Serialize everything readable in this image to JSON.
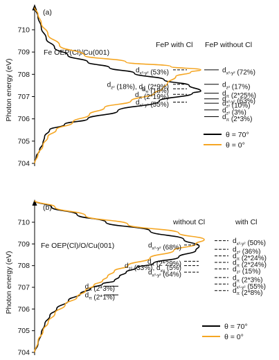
{
  "chart_data": [
    {
      "type": "line",
      "panel_label": "(a)",
      "sample": "Fe OEP(Cl)/Cu(001)",
      "ylabel": "Photon energy (eV)",
      "ylim": [
        704,
        711
      ],
      "yticks": [
        704,
        705,
        706,
        707,
        708,
        709,
        710
      ],
      "legend": [
        {
          "name": "θ = 70°",
          "color": "#000000"
        },
        {
          "name": "θ = 0°",
          "color": "#f5a623"
        }
      ],
      "series": [
        {
          "name": "θ = 70°",
          "color": "#000000",
          "points": [
            [
              0.0,
              704.0
            ],
            [
              0.01,
              704.3
            ],
            [
              0.03,
              704.6
            ],
            [
              0.05,
              704.9
            ],
            [
              0.06,
              705.2
            ],
            [
              0.09,
              705.5
            ],
            [
              0.18,
              705.75
            ],
            [
              0.32,
              706.0
            ],
            [
              0.5,
              706.35
            ],
            [
              0.75,
              706.8
            ],
            [
              0.95,
              707.15
            ],
            [
              1.0,
              707.25
            ],
            [
              0.93,
              707.5
            ],
            [
              0.78,
              707.75
            ],
            [
              0.6,
              708.05
            ],
            [
              0.45,
              708.3
            ],
            [
              0.32,
              708.55
            ],
            [
              0.2,
              708.85
            ],
            [
              0.12,
              709.2
            ],
            [
              0.07,
              709.6
            ],
            [
              0.04,
              710.1
            ],
            [
              0.02,
              710.6
            ],
            [
              0.0,
              711.0
            ]
          ]
        },
        {
          "name": "θ = 0°",
          "color": "#f5a623",
          "points": [
            [
              0.0,
              704.0
            ],
            [
              0.02,
              704.4
            ],
            [
              0.05,
              704.8
            ],
            [
              0.08,
              705.2
            ],
            [
              0.13,
              705.5
            ],
            [
              0.23,
              705.85
            ],
            [
              0.33,
              706.2
            ],
            [
              0.42,
              706.5
            ],
            [
              0.58,
              706.8
            ],
            [
              0.72,
              707.15
            ],
            [
              0.77,
              707.35
            ],
            [
              0.8,
              707.6
            ],
            [
              0.85,
              707.9
            ],
            [
              0.94,
              708.1
            ],
            [
              1.0,
              708.2
            ],
            [
              0.82,
              708.35
            ],
            [
              0.55,
              708.55
            ],
            [
              0.3,
              708.85
            ],
            [
              0.15,
              709.3
            ],
            [
              0.08,
              709.8
            ],
            [
              0.04,
              710.3
            ],
            [
              0.02,
              710.7
            ],
            [
              0.0,
              711.0
            ]
          ]
        }
      ],
      "group_labels": {
        "left": "FeP with Cl",
        "right": "FeP without Cl"
      },
      "annotations_left": [
        {
          "orb": "d",
          "sub": "x²-y²",
          "text": " (53%)",
          "energy": 708.2
        },
        {
          "orb": "d",
          "sub": "z²",
          "text": " (18%), d",
          "sub2": "π",
          "text2": " (2*9%)",
          "energy": 707.55
        },
        {
          "orb": "d",
          "sub": "π",
          "text": " (18%)",
          "energy": 707.35
        },
        {
          "orb": "d",
          "sub": "π",
          "text": " (2*19%)",
          "energy": 707.1
        },
        {
          "orb": "d",
          "sub": "x²-y²",
          "text": " (55%)",
          "energy": 706.75
        }
      ],
      "annotations_right": [
        {
          "orb": "d",
          "sub": "x²-y²",
          "text": " (72%)",
          "energy": 708.2
        },
        {
          "orb": "d",
          "sub": "z²",
          "text": " (17%)",
          "energy": 707.55
        },
        {
          "orb": "d",
          "sub": "π",
          "text": " (2*25%)",
          "energy": 707.15
        },
        {
          "orb": "d",
          "sub": "x²-y²",
          "text": " (63%)",
          "energy": 706.9
        },
        {
          "orb": "d",
          "sub": "z²",
          "text": " (10%)",
          "energy": 706.7
        },
        {
          "orb": "d",
          "sub": "z²",
          "text": " (3%)",
          "energy": 706.4
        },
        {
          "orb": "d",
          "sub": "π",
          "text": " (2*3%)",
          "energy": 706.1
        }
      ]
    },
    {
      "type": "line",
      "panel_label": "(b)",
      "sample": "Fe OEP(Cl)/O/Cu(001)",
      "ylabel": "Photon energy (eV)",
      "ylim": [
        704,
        711
      ],
      "yticks": [
        704,
        705,
        706,
        707,
        708,
        709,
        710
      ],
      "legend": [
        {
          "name": "θ = 70°",
          "color": "#000000"
        },
        {
          "name": "θ = 0°",
          "color": "#f5a623"
        }
      ],
      "series": [
        {
          "name": "θ = 70°",
          "color": "#000000",
          "points": [
            [
              0.0,
              704.0
            ],
            [
              0.02,
              704.4
            ],
            [
              0.04,
              704.9
            ],
            [
              0.06,
              705.3
            ],
            [
              0.09,
              705.7
            ],
            [
              0.13,
              706.0
            ],
            [
              0.2,
              706.4
            ],
            [
              0.27,
              706.7
            ],
            [
              0.33,
              706.95
            ],
            [
              0.4,
              707.15
            ],
            [
              0.47,
              707.3
            ],
            [
              0.5,
              707.5
            ],
            [
              0.54,
              707.7
            ],
            [
              0.6,
              707.9
            ],
            [
              0.7,
              708.1
            ],
            [
              0.85,
              708.4
            ],
            [
              0.95,
              708.7
            ],
            [
              0.97,
              708.9
            ],
            [
              0.88,
              709.2
            ],
            [
              0.68,
              709.6
            ],
            [
              0.42,
              710.0
            ],
            [
              0.25,
              710.35
            ],
            [
              0.1,
              710.7
            ],
            [
              0.0,
              711.0
            ]
          ]
        },
        {
          "name": "θ = 0°",
          "color": "#f5a623",
          "points": [
            [
              0.0,
              704.0
            ],
            [
              0.02,
              704.5
            ],
            [
              0.05,
              705.0
            ],
            [
              0.08,
              705.4
            ],
            [
              0.12,
              705.8
            ],
            [
              0.18,
              706.2
            ],
            [
              0.25,
              706.55
            ],
            [
              0.3,
              706.85
            ],
            [
              0.35,
              707.1
            ],
            [
              0.4,
              707.3
            ],
            [
              0.43,
              707.5
            ],
            [
              0.47,
              707.75
            ],
            [
              0.55,
              708.0
            ],
            [
              0.68,
              708.35
            ],
            [
              0.82,
              708.7
            ],
            [
              0.95,
              709.0
            ],
            [
              1.0,
              709.2
            ],
            [
              0.85,
              709.5
            ],
            [
              0.55,
              709.9
            ],
            [
              0.3,
              710.3
            ],
            [
              0.12,
              710.7
            ],
            [
              0.0,
              711.0
            ]
          ]
        }
      ],
      "group_labels": {
        "left": "without Cl",
        "right": "with Cl"
      },
      "annotations_left": [
        {
          "orb": "d",
          "sub": "π",
          "text": " (2*3%)",
          "energy": 707.05
        },
        {
          "orb": "d",
          "sub": "π",
          "text": " (2*1%)",
          "energy": 706.65
        },
        {
          "orb": "d",
          "sub": "x²-y²",
          "text": " (68%)",
          "energy": 708.95
        },
        {
          "orb": "d",
          "sub": "π",
          "text": " (2*29%)",
          "energy": 708.2
        },
        {
          "orb": "d",
          "sub": "z²",
          "text": " (33%), d",
          "sub2": "xy",
          "text2": " (5%)",
          "energy": 708.0
        },
        {
          "orb": "d",
          "sub": "x²-y²",
          "text": " (64%)",
          "energy": 707.7
        }
      ],
      "annotations_right": [
        {
          "orb": "d",
          "sub": "x²-y²",
          "text": " (50%)",
          "energy": 709.15
        },
        {
          "orb": "d",
          "sub": "z²",
          "text": " (36%)",
          "energy": 708.75
        },
        {
          "orb": "d",
          "sub": "π",
          "text": " (2*24%)",
          "energy": 708.45
        },
        {
          "orb": "d",
          "sub": "π",
          "text": " (2*24%)",
          "energy": 708.15
        },
        {
          "orb": "d",
          "sub": "z²",
          "text": " (15%)",
          "energy": 707.85
        },
        {
          "orb": "d",
          "sub": "π",
          "text": " (2*3%)",
          "energy": 707.45
        },
        {
          "orb": "d",
          "sub": "x²-y²",
          "text": " (55%)",
          "energy": 707.15
        },
        {
          "orb": "d",
          "sub": "π",
          "text": " (2*8%)",
          "energy": 706.85
        }
      ]
    }
  ]
}
